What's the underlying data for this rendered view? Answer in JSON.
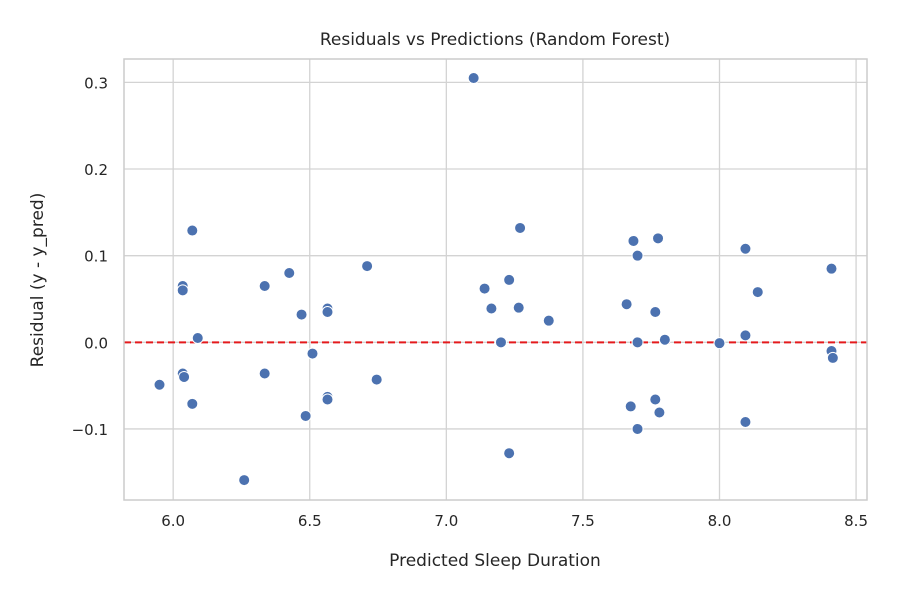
{
  "chart_data": {
    "type": "scatter",
    "title": "Residuals vs Predictions (Random Forest)",
    "xlabel": "Predicted Sleep Duration",
    "ylabel": "Residual (y - y_pred)",
    "xlim": [
      5.82,
      8.54
    ],
    "ylim": [
      -0.182,
      0.327
    ],
    "xticks": [
      6.0,
      6.5,
      7.0,
      7.5,
      8.0,
      8.5
    ],
    "xtick_labels": [
      "6.0",
      "6.5",
      "7.0",
      "7.5",
      "8.0",
      "8.5"
    ],
    "yticks": [
      -0.1,
      0.0,
      0.1,
      0.2,
      0.3
    ],
    "ytick_labels": [
      "−0.1",
      "0.0",
      "0.1",
      "0.2",
      "0.3"
    ],
    "grid": true,
    "reference_line": {
      "y": 0,
      "style": "dashed",
      "color": "#e41a1c"
    },
    "point_color": "#4c72b0",
    "points": [
      {
        "x": 7.1,
        "y": 0.305
      },
      {
        "x": 5.95,
        "y": -0.049
      },
      {
        "x": 6.035,
        "y": 0.065
      },
      {
        "x": 6.035,
        "y": 0.06
      },
      {
        "x": 6.035,
        "y": -0.036
      },
      {
        "x": 6.04,
        "y": -0.04
      },
      {
        "x": 6.07,
        "y": 0.129
      },
      {
        "x": 6.07,
        "y": -0.071
      },
      {
        "x": 6.09,
        "y": 0.005
      },
      {
        "x": 6.26,
        "y": -0.159
      },
      {
        "x": 6.335,
        "y": 0.065
      },
      {
        "x": 6.335,
        "y": -0.036
      },
      {
        "x": 6.425,
        "y": 0.08
      },
      {
        "x": 6.47,
        "y": 0.032
      },
      {
        "x": 6.485,
        "y": -0.085
      },
      {
        "x": 6.51,
        "y": -0.013
      },
      {
        "x": 6.565,
        "y": 0.039
      },
      {
        "x": 6.565,
        "y": 0.035
      },
      {
        "x": 6.565,
        "y": -0.063
      },
      {
        "x": 6.565,
        "y": -0.066
      },
      {
        "x": 6.71,
        "y": 0.088
      },
      {
        "x": 6.745,
        "y": -0.043
      },
      {
        "x": 7.14,
        "y": 0.062
      },
      {
        "x": 7.165,
        "y": 0.039
      },
      {
        "x": 7.2,
        "y": 0.0
      },
      {
        "x": 7.23,
        "y": 0.072
      },
      {
        "x": 7.23,
        "y": -0.128
      },
      {
        "x": 7.265,
        "y": 0.04
      },
      {
        "x": 7.27,
        "y": 0.132
      },
      {
        "x": 7.375,
        "y": 0.025
      },
      {
        "x": 7.66,
        "y": 0.044
      },
      {
        "x": 7.675,
        "y": -0.074
      },
      {
        "x": 7.685,
        "y": 0.117
      },
      {
        "x": 7.7,
        "y": 0.1
      },
      {
        "x": 7.7,
        "y": 0.0
      },
      {
        "x": 7.7,
        "y": -0.1
      },
      {
        "x": 7.765,
        "y": 0.035
      },
      {
        "x": 7.765,
        "y": -0.066
      },
      {
        "x": 7.775,
        "y": 0.12
      },
      {
        "x": 7.78,
        "y": -0.081
      },
      {
        "x": 7.8,
        "y": 0.003
      },
      {
        "x": 8.0,
        "y": -0.001
      },
      {
        "x": 8.095,
        "y": 0.108
      },
      {
        "x": 8.095,
        "y": 0.008
      },
      {
        "x": 8.095,
        "y": -0.092
      },
      {
        "x": 8.14,
        "y": 0.058
      },
      {
        "x": 8.41,
        "y": 0.085
      },
      {
        "x": 8.41,
        "y": -0.01
      },
      {
        "x": 8.415,
        "y": -0.018
      }
    ]
  }
}
